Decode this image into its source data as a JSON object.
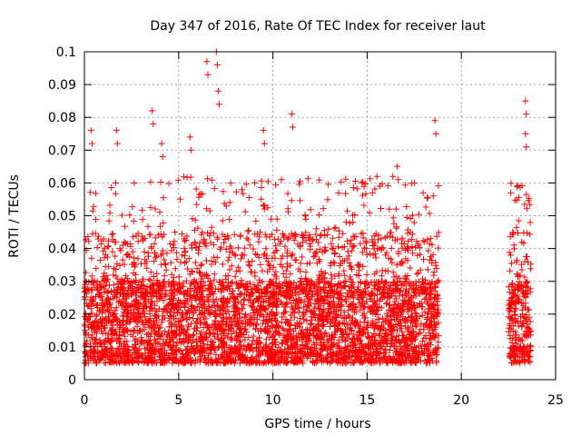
{
  "chart_data": {
    "type": "scatter",
    "title": "Day 347 of 2016, Rate Of TEC Index for receiver laut",
    "xlabel": "GPS time / hours",
    "ylabel": "ROTI / TECUs",
    "xlim": [
      0,
      25
    ],
    "ylim": [
      0,
      0.1
    ],
    "x_ticks": [
      0,
      5,
      10,
      15,
      20,
      25
    ],
    "y_ticks": [
      0,
      0.01,
      0.02,
      0.03,
      0.04,
      0.05,
      0.06,
      0.07,
      0.08,
      0.09,
      0.1
    ],
    "grid": true,
    "marker": "+",
    "color": "#ff0000",
    "series": [
      {
        "x_ranges_hours": [
          [
            0,
            18.8
          ],
          [
            22.5,
            23.7
          ]
        ],
        "typical_range": [
          0.005,
          0.03
        ],
        "notable_peaks": [
          {
            "x": 0.35,
            "y": 0.076
          },
          {
            "x": 1.7,
            "y": 0.076
          },
          {
            "x": 3.6,
            "y": 0.082
          },
          {
            "x": 4.1,
            "y": 0.072
          },
          {
            "x": 5.6,
            "y": 0.074
          },
          {
            "x": 6.5,
            "y": 0.097
          },
          {
            "x": 7.0,
            "y": 0.1
          },
          {
            "x": 7.1,
            "y": 0.088
          },
          {
            "x": 9.5,
            "y": 0.076
          },
          {
            "x": 11.0,
            "y": 0.081
          },
          {
            "x": 16.6,
            "y": 0.065
          },
          {
            "x": 18.6,
            "y": 0.079
          },
          {
            "x": 23.4,
            "y": 0.085
          },
          {
            "x": 23.4,
            "y": 0.075
          }
        ]
      }
    ]
  }
}
